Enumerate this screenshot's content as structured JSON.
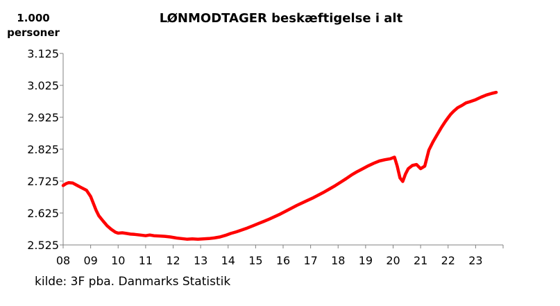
{
  "chart_data": {
    "type": "line",
    "title": "LØNMODTAGER beskæftigelse i alt",
    "ylabel_line1": "1.000",
    "ylabel_line2": "personer",
    "source": "kilde: 3F pba. Danmarks Statistik",
    "ylim": [
      2525,
      3125
    ],
    "xlim": [
      2008.0,
      2024.0
    ],
    "yticks": [
      "2.525",
      "2.625",
      "2.725",
      "2.825",
      "2.925",
      "3.025",
      "3.125"
    ],
    "ytick_values": [
      2525,
      2625,
      2725,
      2825,
      2925,
      3025,
      3125
    ],
    "xtick_labels": [
      "08",
      "09",
      "10",
      "11",
      "12",
      "13",
      "14",
      "15",
      "16",
      "17",
      "18",
      "19",
      "20",
      "21",
      "22",
      "23"
    ],
    "grid": false,
    "line_color": "#ff0000",
    "series": [
      {
        "x": [
          2008.0,
          2008.1,
          2008.2,
          2008.35,
          2008.5,
          2008.65,
          2008.85,
          2009.0,
          2009.1,
          2009.2,
          2009.3,
          2009.45,
          2009.6,
          2009.75,
          2009.9,
          2010.0,
          2010.15,
          2010.3,
          2010.45,
          2010.6,
          2010.8,
          2011.0,
          2011.15,
          2011.3,
          2011.5,
          2011.7,
          2011.9,
          2012.1,
          2012.3,
          2012.5,
          2012.7,
          2012.9,
          2013.1,
          2013.3,
          2013.5,
          2013.7,
          2013.9,
          2014.1,
          2014.3,
          2014.5,
          2014.7,
          2014.9,
          2015.1,
          2015.3,
          2015.5,
          2015.7,
          2015.9,
          2016.1,
          2016.3,
          2016.5,
          2016.7,
          2016.9,
          2017.1,
          2017.3,
          2017.5,
          2017.7,
          2017.9,
          2018.1,
          2018.3,
          2018.5,
          2018.7,
          2018.9,
          2019.1,
          2019.3,
          2019.5,
          2019.7,
          2019.9,
          2020.05,
          2020.15,
          2020.25,
          2020.35,
          2020.45,
          2020.55,
          2020.7,
          2020.85,
          2021.0,
          2021.15,
          2021.3,
          2021.45,
          2021.6,
          2021.75,
          2021.9,
          2022.0,
          2022.1,
          2022.2,
          2022.35,
          2022.5,
          2022.65,
          2022.8,
          2023.0,
          2023.2,
          2023.4,
          2023.6,
          2023.75
        ],
        "values": [
          2711,
          2717,
          2720,
          2719,
          2712,
          2705,
          2696,
          2677,
          2655,
          2633,
          2616,
          2600,
          2585,
          2574,
          2565,
          2562,
          2563,
          2561,
          2559,
          2558,
          2556,
          2554,
          2556,
          2554,
          2553,
          2552,
          2550,
          2547,
          2545,
          2543,
          2544,
          2543,
          2544,
          2545,
          2547,
          2550,
          2555,
          2561,
          2566,
          2572,
          2578,
          2585,
          2592,
          2599,
          2606,
          2614,
          2622,
          2631,
          2640,
          2649,
          2657,
          2665,
          2673,
          2682,
          2691,
          2701,
          2711,
          2722,
          2733,
          2745,
          2755,
          2764,
          2773,
          2781,
          2788,
          2792,
          2795,
          2800,
          2772,
          2735,
          2724,
          2747,
          2764,
          2774,
          2777,
          2764,
          2772,
          2822,
          2848,
          2870,
          2892,
          2912,
          2924,
          2935,
          2944,
          2955,
          2962,
          2970,
          2974,
          2980,
          2988,
          2995,
          3000,
          3003
        ]
      }
    ]
  }
}
